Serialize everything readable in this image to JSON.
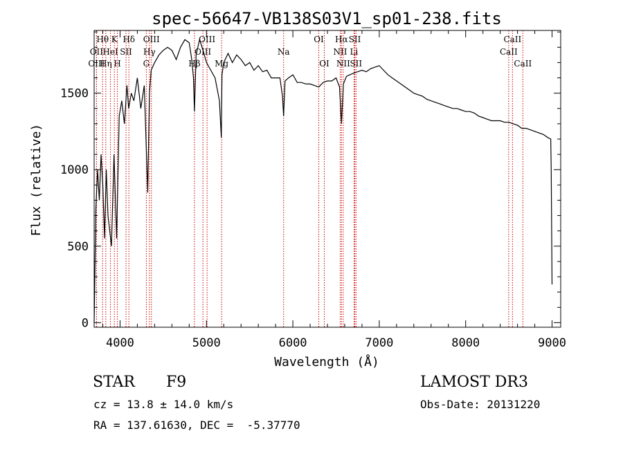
{
  "chart_data": {
    "type": "line",
    "title": "spec-56647-VB138S03V1_sp01-238.fits",
    "xlabel": "Wavelength (Å)",
    "ylabel": "Flux (relative)",
    "xlim": [
      3700,
      9100
    ],
    "ylim": [
      -30,
      1910
    ],
    "xticks": [
      4000,
      5000,
      6000,
      7000,
      8000,
      9000
    ],
    "yticks": [
      0,
      500,
      1000,
      1500
    ],
    "grid": false,
    "line_color": "#000000",
    "marker_color": "#cc0000",
    "series": [
      {
        "x": [
          3700,
          3720,
          3740,
          3760,
          3780,
          3800,
          3820,
          3840,
          3860,
          3880,
          3900,
          3930,
          3960,
          3990,
          4020,
          4050,
          4080,
          4100,
          4130,
          4160,
          4200,
          4240,
          4280,
          4300,
          4320,
          4340,
          4360,
          4400,
          4450,
          4500,
          4550,
          4600,
          4650,
          4700,
          4750,
          4800,
          4830,
          4850,
          4861,
          4880,
          4920,
          4960,
          5000,
          5050,
          5100,
          5150,
          5172,
          5180,
          5200,
          5250,
          5300,
          5350,
          5400,
          5450,
          5500,
          5550,
          5600,
          5650,
          5700,
          5750,
          5800,
          5850,
          5880,
          5893,
          5910,
          5950,
          6000,
          6050,
          6100,
          6150,
          6200,
          6250,
          6300,
          6350,
          6400,
          6450,
          6500,
          6540,
          6563,
          6585,
          6620,
          6660,
          6700,
          6750,
          6800,
          6850,
          6900,
          6950,
          7000,
          7050,
          7100,
          7150,
          7200,
          7250,
          7300,
          7350,
          7400,
          7450,
          7500,
          7550,
          7600,
          7650,
          7700,
          7750,
          7800,
          7850,
          7900,
          7950,
          8000,
          8050,
          8100,
          8150,
          8200,
          8250,
          8300,
          8350,
          8400,
          8450,
          8500,
          8550,
          8600,
          8650,
          8700,
          8750,
          8800,
          8850,
          8900,
          8950,
          8985,
          8990,
          9000
        ],
        "y": [
          0,
          750,
          1000,
          800,
          1100,
          900,
          550,
          1000,
          700,
          600,
          500,
          1100,
          550,
          1350,
          1450,
          1300,
          1550,
          1400,
          1500,
          1450,
          1600,
          1400,
          1550,
          1200,
          850,
          1500,
          1650,
          1700,
          1750,
          1780,
          1800,
          1780,
          1720,
          1800,
          1850,
          1830,
          1720,
          1600,
          1380,
          1750,
          1850,
          1780,
          1700,
          1650,
          1600,
          1450,
          1210,
          1620,
          1700,
          1760,
          1700,
          1750,
          1720,
          1680,
          1700,
          1650,
          1680,
          1640,
          1650,
          1600,
          1600,
          1600,
          1480,
          1350,
          1580,
          1600,
          1620,
          1570,
          1570,
          1560,
          1560,
          1550,
          1540,
          1570,
          1580,
          1580,
          1600,
          1540,
          1300,
          1560,
          1610,
          1620,
          1630,
          1640,
          1650,
          1640,
          1660,
          1670,
          1680,
          1650,
          1620,
          1600,
          1580,
          1560,
          1540,
          1520,
          1500,
          1490,
          1480,
          1460,
          1450,
          1440,
          1430,
          1420,
          1410,
          1400,
          1400,
          1390,
          1380,
          1380,
          1370,
          1350,
          1340,
          1330,
          1320,
          1320,
          1320,
          1310,
          1310,
          1300,
          1290,
          1270,
          1270,
          1260,
          1250,
          1240,
          1230,
          1210,
          1200,
          1000,
          250
        ]
      }
    ],
    "lines": [
      {
        "label": "Hθ",
        "x": 3798,
        "row": 0
      },
      {
        "label": "OII",
        "x": 3727,
        "row": 1
      },
      {
        "label": "OIII",
        "x": 3727,
        "row": 2
      },
      {
        "label": "K",
        "x": 3934,
        "row": 0
      },
      {
        "label": "HeI",
        "x": 3889,
        "row": 1
      },
      {
        "label": "Hη",
        "x": 3835,
        "row": 2
      },
      {
        "label": "SII",
        "x": 4069,
        "row": 1
      },
      {
        "label": "H",
        "x": 3969,
        "row": 2
      },
      {
        "label": "Hδ",
        "x": 4102,
        "row": 0
      },
      {
        "label": "OIII",
        "x": 4363,
        "row": 0
      },
      {
        "label": "Hγ",
        "x": 4340,
        "row": 1
      },
      {
        "label": "G",
        "x": 4304,
        "row": 2
      },
      {
        "label": "OIII",
        "x": 5007,
        "row": 0
      },
      {
        "label": "OIII",
        "x": 4959,
        "row": 1
      },
      {
        "label": "Hβ",
        "x": 4861,
        "row": 2
      },
      {
        "label": "Mg",
        "x": 5175,
        "row": 2
      },
      {
        "label": "Na",
        "x": 5893,
        "row": 1
      },
      {
        "label": "OI",
        "x": 6300,
        "row": 0
      },
      {
        "label": "OI",
        "x": 6364,
        "row": 2
      },
      {
        "label": "Hα",
        "x": 6563,
        "row": 0
      },
      {
        "label": "SII",
        "x": 6717,
        "row": 0
      },
      {
        "label": "NII",
        "x": 6548,
        "row": 1
      },
      {
        "label": "Li",
        "x": 6708,
        "row": 1
      },
      {
        "label": "NII",
        "x": 6583,
        "row": 2
      },
      {
        "label": "SII",
        "x": 6731,
        "row": 2
      },
      {
        "label": "CaII",
        "x": 8542,
        "row": 0
      },
      {
        "label": "CaII",
        "x": 8498,
        "row": 1
      },
      {
        "label": "CaII",
        "x": 8662,
        "row": 2
      }
    ]
  },
  "info": {
    "class_label": "STAR",
    "subclass_label": "F9",
    "survey_label": "LAMOST DR3",
    "redshift_line": "cz = 13.8 ± 14.0 km/s",
    "obs_date_line": "Obs-Date: 20131220",
    "coords_line": "RA = 137.61630, DEC =  -5.37770"
  }
}
